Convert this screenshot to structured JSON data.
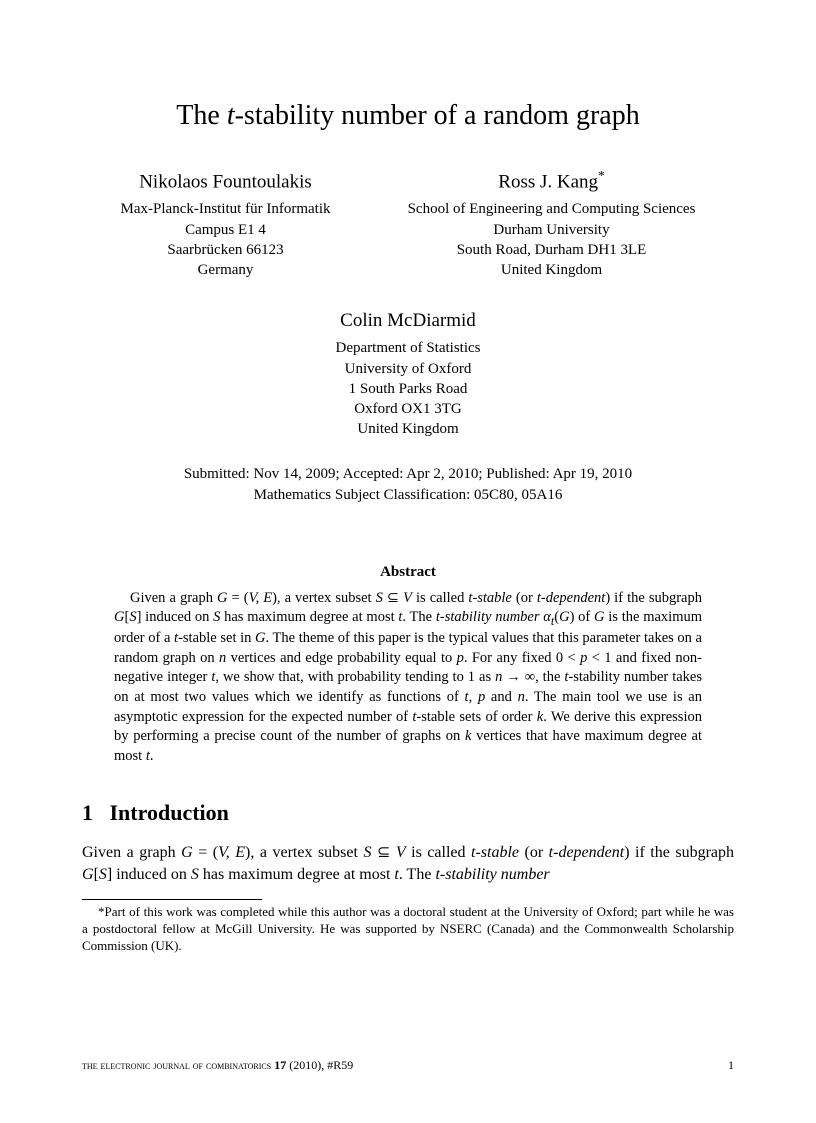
{
  "title_pre": "The ",
  "title_var": "t",
  "title_post": "-stability number of a random graph",
  "authors": [
    {
      "name": "Nikolaos Fountoulakis",
      "star": "",
      "affil": [
        "Max-Planck-Institut für Informatik",
        "Campus E1 4",
        "Saarbrücken 66123",
        "Germany"
      ]
    },
    {
      "name": "Ross J. Kang",
      "star": "*",
      "affil": [
        "School of Engineering and Computing Sciences",
        "Durham University",
        "South Road, Durham DH1 3LE",
        "United Kingdom"
      ]
    }
  ],
  "author3": {
    "name": "Colin McDiarmid",
    "affil": [
      "Department of Statistics",
      "University of Oxford",
      "1 South Parks Road",
      "Oxford OX1 3TG",
      "United Kingdom"
    ]
  },
  "submission_line1": "Submitted: Nov 14, 2009; Accepted: Apr 2, 2010; Published: Apr 19, 2010",
  "submission_line2": "Mathematics Subject Classification: 05C80, 05A16",
  "abstract_label": "Abstract",
  "abstract_html": "Given a graph <span class='italic'>G</span> = (<span class='italic'>V, E</span>), a vertex subset <span class='italic'>S</span> ⊆ <span class='italic'>V</span> is called <span class='italic'>t-stable</span> (or <span class='italic'>t-dependent</span>) if the subgraph <span class='italic'>G</span>[<span class='italic'>S</span>] induced on <span class='italic'>S</span> has maximum degree at most <span class='italic'>t</span>. The <span class='italic'>t-stability number α<sub>t</sub></span>(<span class='italic'>G</span>) of <span class='italic'>G</span> is the maximum order of a <span class='italic'>t</span>-stable set in <span class='italic'>G</span>. The theme of this paper is the typical values that this parameter takes on a random graph on <span class='italic'>n</span> vertices and edge probability equal to <span class='italic'>p</span>. For any fixed 0 &lt; <span class='italic'>p</span> &lt; 1 and fixed non-negative integer <span class='italic'>t</span>, we show that, with probability tending to 1 as <span class='italic'>n</span> → ∞, the <span class='italic'>t</span>-stability number takes on at most two values which we identify as functions of <span class='italic'>t</span>, <span class='italic'>p</span> and <span class='italic'>n</span>. The main tool we use is an asymptotic expression for the expected number of <span class='italic'>t</span>-stable sets of order <span class='italic'>k</span>. We derive this expression by performing a precise count of the number of graphs on <span class='italic'>k</span> vertices that have maximum degree at most <span class='italic'>t</span>.",
  "section_number": "1",
  "section_title": "Introduction",
  "intro_html": "Given a graph <span class='italic'>G</span> = (<span class='italic'>V, E</span>), a vertex subset <span class='italic'>S</span> ⊆ <span class='italic'>V</span> is called <span class='italic'>t-stable</span> (or <span class='italic'>t-dependent</span>) if the subgraph <span class='italic'>G</span>[<span class='italic'>S</span>] induced on <span class='italic'>S</span> has maximum degree at most <span class='italic'>t</span>. The <span class='italic'>t-stability number</span>",
  "footnote": "*Part of this work was completed while this author was a doctoral student at the University of Oxford; part while he was a postdoctoral fellow at McGill University. He was supported by NSERC (Canada) and the Commonwealth Scholarship Commission (UK).",
  "footer_journal": "the electronic journal of combinatorics ",
  "footer_volume": "17",
  "footer_year": " (2010), #R59",
  "footer_page": "1"
}
